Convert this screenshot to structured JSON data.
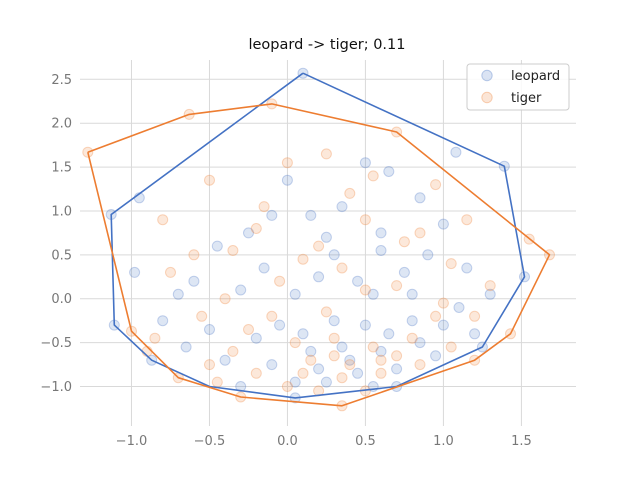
{
  "chart_data": {
    "type": "scatter",
    "title": "leopard -> tiger; 0.11",
    "xlabel": "",
    "ylabel": "",
    "xlim": [
      -1.33,
      1.85
    ],
    "ylim": [
      -1.45,
      2.72
    ],
    "xticks": [
      -1.0,
      -0.5,
      0.0,
      0.5,
      1.0,
      1.5
    ],
    "xtick_labels": [
      "−1.0",
      "−0.5",
      "0.0",
      "0.5",
      "1.0",
      "1.5"
    ],
    "yticks": [
      -1.0,
      -0.5,
      0.0,
      0.5,
      1.0,
      1.5,
      2.0,
      2.5
    ],
    "ytick_labels": [
      "−1.0",
      "−0.5",
      "0.0",
      "0.5",
      "1.0",
      "1.5",
      "2.0",
      "2.5"
    ],
    "grid": true,
    "legend_position": "top-right",
    "series": [
      {
        "name": "leopard",
        "color": "#4472c4",
        "hull": [
          [
            0.1,
            2.57
          ],
          [
            1.39,
            1.51
          ],
          [
            1.52,
            0.25
          ],
          [
            1.25,
            -0.55
          ],
          [
            0.7,
            -1.0
          ],
          [
            0.05,
            -1.13
          ],
          [
            -0.5,
            -1.0
          ],
          [
            -0.87,
            -0.7
          ],
          [
            -1.11,
            -0.3
          ],
          [
            -1.13,
            0.96
          ]
        ],
        "points": [
          [
            0.1,
            2.57
          ],
          [
            1.39,
            1.51
          ],
          [
            1.52,
            0.25
          ],
          [
            -1.13,
            0.96
          ],
          [
            -1.11,
            -0.3
          ],
          [
            -0.87,
            -0.7
          ],
          [
            0.05,
            -1.13
          ],
          [
            0.7,
            -1.0
          ],
          [
            1.25,
            -0.55
          ],
          [
            -0.95,
            1.15
          ],
          [
            -0.98,
            0.3
          ],
          [
            1.08,
            1.67
          ],
          [
            0.5,
            1.55
          ],
          [
            0.85,
            1.15
          ],
          [
            0.15,
            0.95
          ],
          [
            -0.25,
            0.75
          ],
          [
            0.3,
            0.5
          ],
          [
            0.0,
            1.35
          ],
          [
            0.6,
            0.75
          ],
          [
            0.9,
            0.5
          ],
          [
            1.15,
            0.35
          ],
          [
            1.3,
            0.05
          ],
          [
            -0.6,
            0.2
          ],
          [
            -0.3,
            0.1
          ],
          [
            0.05,
            0.05
          ],
          [
            0.45,
            0.2
          ],
          [
            0.8,
            0.05
          ],
          [
            1.1,
            -0.1
          ],
          [
            -0.8,
            -0.25
          ],
          [
            -0.5,
            -0.35
          ],
          [
            -0.2,
            -0.45
          ],
          [
            0.1,
            -0.4
          ],
          [
            0.35,
            -0.55
          ],
          [
            0.6,
            -0.6
          ],
          [
            0.85,
            -0.5
          ],
          [
            -0.4,
            -0.7
          ],
          [
            -0.1,
            -0.75
          ],
          [
            0.2,
            -0.8
          ],
          [
            0.45,
            -0.85
          ],
          [
            0.7,
            -0.8
          ],
          [
            0.95,
            -0.65
          ],
          [
            0.25,
            -0.95
          ],
          [
            0.55,
            -1.0
          ],
          [
            -0.65,
            -0.55
          ],
          [
            1.0,
            -0.3
          ],
          [
            0.15,
            -0.6
          ],
          [
            0.4,
            -0.7
          ],
          [
            0.65,
            -0.4
          ],
          [
            -0.05,
            -0.3
          ],
          [
            0.3,
            -0.25
          ],
          [
            0.55,
            0.05
          ],
          [
            0.2,
            0.25
          ],
          [
            -0.15,
            0.35
          ],
          [
            0.75,
            0.3
          ],
          [
            1.0,
            0.85
          ],
          [
            -0.45,
            0.6
          ],
          [
            0.35,
            1.05
          ],
          [
            0.65,
            1.45
          ],
          [
            -0.1,
            0.95
          ],
          [
            0.5,
            -0.3
          ],
          [
            0.8,
            -0.25
          ],
          [
            0.05,
            -0.95
          ],
          [
            -0.3,
            -1.0
          ],
          [
            1.2,
            -0.4
          ],
          [
            0.6,
            0.55
          ],
          [
            0.25,
            0.7
          ],
          [
            -0.7,
            0.05
          ]
        ]
      },
      {
        "name": "tiger",
        "color": "#ed7d31",
        "hull": [
          [
            -1.28,
            1.67
          ],
          [
            -0.63,
            2.1
          ],
          [
            -0.1,
            2.22
          ],
          [
            0.7,
            1.9
          ],
          [
            1.68,
            0.5
          ],
          [
            1.43,
            -0.4
          ],
          [
            1.2,
            -0.7
          ],
          [
            0.35,
            -1.22
          ],
          [
            -0.3,
            -1.12
          ],
          [
            -0.7,
            -0.9
          ],
          [
            -1.0,
            -0.37
          ]
        ],
        "points": [
          [
            -1.28,
            1.67
          ],
          [
            -0.63,
            2.1
          ],
          [
            -0.1,
            2.22
          ],
          [
            0.7,
            1.9
          ],
          [
            1.68,
            0.5
          ],
          [
            1.43,
            -0.4
          ],
          [
            1.2,
            -0.7
          ],
          [
            0.35,
            -1.22
          ],
          [
            -0.3,
            -1.12
          ],
          [
            -0.7,
            -0.9
          ],
          [
            -1.0,
            -0.37
          ],
          [
            1.55,
            0.68
          ],
          [
            0.0,
            1.55
          ],
          [
            0.25,
            1.65
          ],
          [
            0.55,
            1.4
          ],
          [
            0.95,
            1.3
          ],
          [
            -0.5,
            1.35
          ],
          [
            -0.8,
            0.9
          ],
          [
            -0.6,
            0.5
          ],
          [
            -0.2,
            0.8
          ],
          [
            0.2,
            0.6
          ],
          [
            0.5,
            0.9
          ],
          [
            0.75,
            0.65
          ],
          [
            1.05,
            0.4
          ],
          [
            1.3,
            0.15
          ],
          [
            -0.75,
            0.3
          ],
          [
            -0.4,
            0.0
          ],
          [
            -0.05,
            0.2
          ],
          [
            0.35,
            0.35
          ],
          [
            0.7,
            0.15
          ],
          [
            1.0,
            -0.05
          ],
          [
            -0.85,
            -0.45
          ],
          [
            -0.55,
            -0.2
          ],
          [
            -0.25,
            -0.35
          ],
          [
            0.05,
            -0.5
          ],
          [
            0.3,
            -0.45
          ],
          [
            0.55,
            -0.55
          ],
          [
            0.8,
            -0.45
          ],
          [
            1.05,
            -0.55
          ],
          [
            -0.5,
            -0.75
          ],
          [
            -0.2,
            -0.85
          ],
          [
            0.1,
            -0.85
          ],
          [
            0.35,
            -0.9
          ],
          [
            0.6,
            -0.85
          ],
          [
            0.85,
            -0.75
          ],
          [
            0.2,
            -1.05
          ],
          [
            0.5,
            -1.05
          ],
          [
            -0.35,
            -0.6
          ],
          [
            0.15,
            -0.7
          ],
          [
            0.4,
            -0.75
          ],
          [
            0.7,
            -0.65
          ],
          [
            0.95,
            -0.2
          ],
          [
            -0.1,
            -0.2
          ],
          [
            0.25,
            -0.15
          ],
          [
            0.5,
            0.1
          ],
          [
            0.1,
            0.45
          ],
          [
            -0.35,
            0.55
          ],
          [
            0.85,
            0.75
          ],
          [
            0.4,
            1.2
          ],
          [
            -0.15,
            1.05
          ],
          [
            1.15,
            0.9
          ],
          [
            -0.45,
            -0.95
          ],
          [
            0.0,
            -1.0
          ],
          [
            0.3,
            -0.65
          ],
          [
            0.6,
            -0.7
          ],
          [
            -0.9,
            -0.6
          ],
          [
            1.2,
            -0.2
          ]
        ]
      }
    ]
  }
}
